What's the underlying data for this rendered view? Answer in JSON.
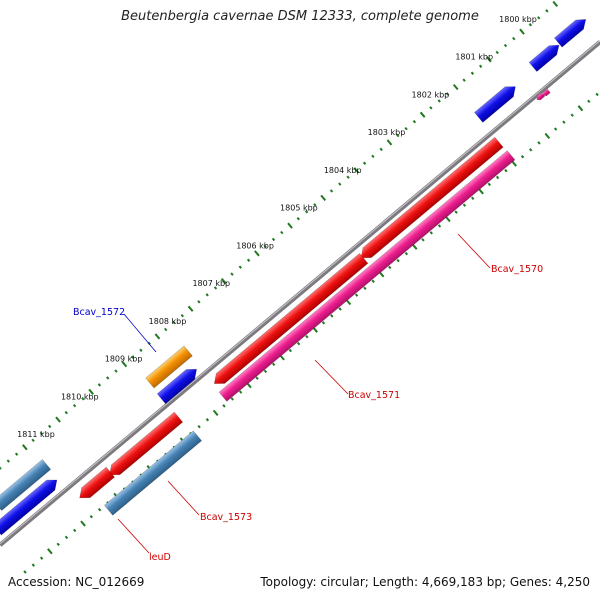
{
  "title": "Beutenbergia cavernae DSM 12333, complete genome",
  "accession": "Accession: NC_012669",
  "summary": "Topology: circular; Length: 4,669,183 bp; Genes: 4,250",
  "colors": {
    "backbone": "#7d7a7f",
    "tick": "#1f7a1f",
    "gene_red": "#ee1111",
    "gene_pink": "#ee1e8e",
    "gene_blue": "#1010e8",
    "gene_steel": "#4682b4",
    "gene_orange": "#f39000",
    "label_red": "#cc0000",
    "label_blue": "#0000cc"
  },
  "ticks": [
    {
      "label": "1800 kbp"
    },
    {
      "label": "1801 kbp"
    },
    {
      "label": "1802 kbp"
    },
    {
      "label": "1803 kbp"
    },
    {
      "label": "1804 kbp"
    },
    {
      "label": "1805 kbp"
    },
    {
      "label": "1806 kbp"
    },
    {
      "label": "1807 kbp"
    },
    {
      "label": "1808 kbp"
    },
    {
      "label": "1809 kbp"
    },
    {
      "label": "1810 kbp"
    },
    {
      "label": "1811 kbp"
    }
  ],
  "gene_labels": {
    "bcav_1572": "Bcav_1572",
    "bcav_1570": "Bcav_1570",
    "bcav_1571": "Bcav_1571",
    "bcav_1573": "Bcav_1573",
    "leud": "leuD"
  }
}
